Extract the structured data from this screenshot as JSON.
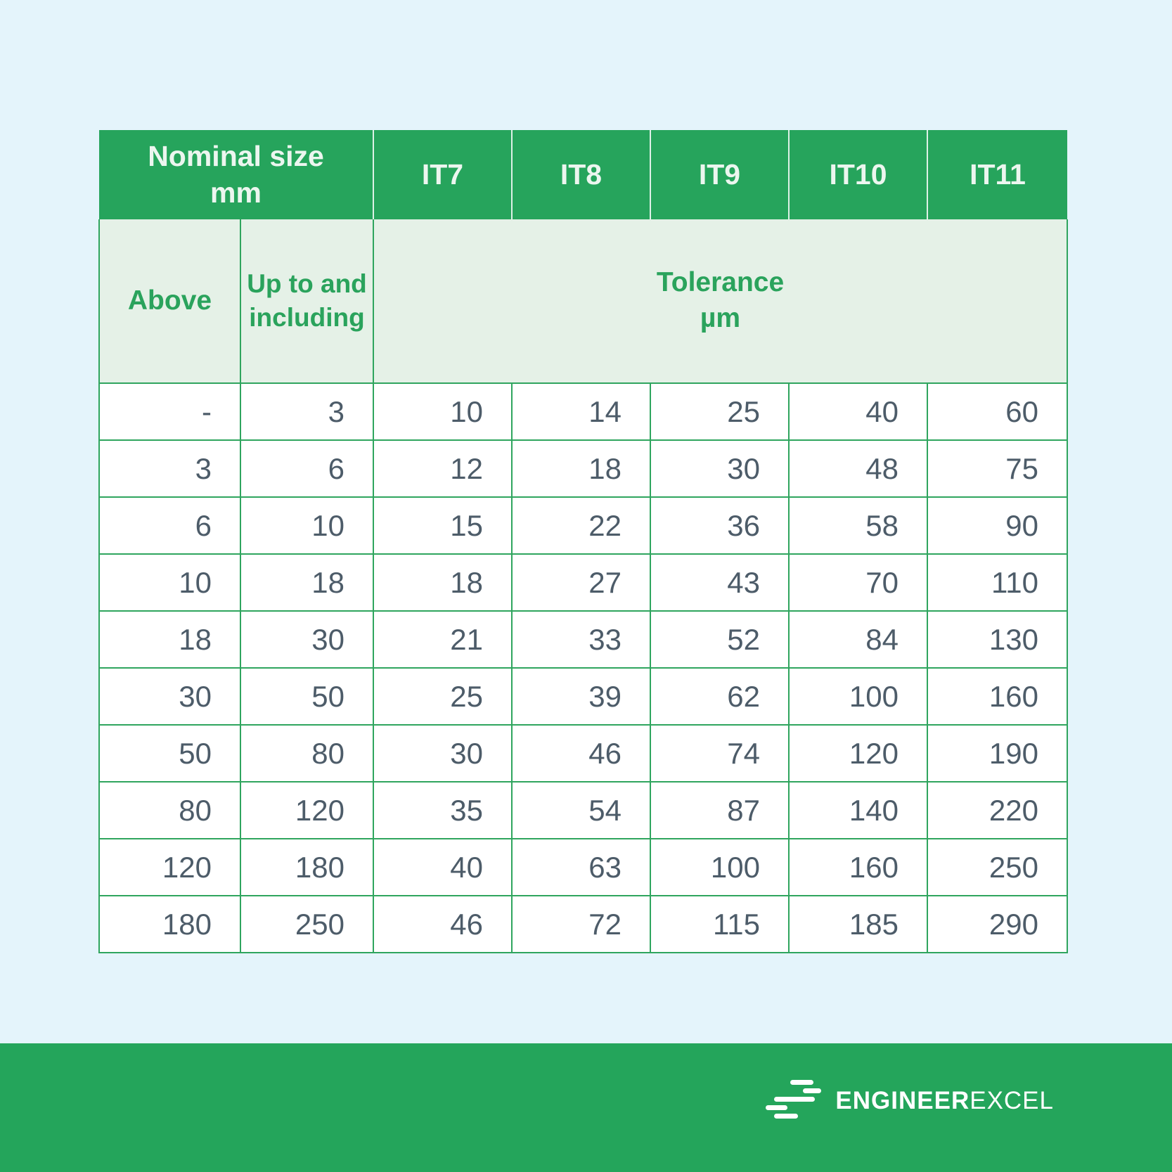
{
  "colors": {
    "page_background": "#e4f4fb",
    "header_green": "#26a45c",
    "subheader_background": "#e5f1e7",
    "subheader_text_green": "#2aa35c",
    "border_green": "#2fa55e",
    "data_text": "#4d5c69",
    "footer_green": "#24a55b",
    "header_text": "#ecf6ef"
  },
  "table": {
    "header": {
      "nominal_line1": "Nominal size",
      "nominal_line2": "mm",
      "it_columns": [
        "IT7",
        "IT8",
        "IT9",
        "IT10",
        "IT11"
      ]
    },
    "subheader": {
      "above": "Above",
      "up_to_line1": "Up to and",
      "up_to_line2": "including",
      "tolerance_line1": "Tolerance",
      "tolerance_line2": "µm"
    }
  },
  "chart_data": {
    "type": "table",
    "title": "International tolerance grades by nominal size",
    "units": "µm",
    "columns": [
      "Above",
      "Up to and including",
      "IT7",
      "IT8",
      "IT9",
      "IT10",
      "IT11"
    ],
    "rows": [
      [
        "-",
        "3",
        "10",
        "14",
        "25",
        "40",
        "60"
      ],
      [
        "3",
        "6",
        "12",
        "18",
        "30",
        "48",
        "75"
      ],
      [
        "6",
        "10",
        "15",
        "22",
        "36",
        "58",
        "90"
      ],
      [
        "10",
        "18",
        "18",
        "27",
        "43",
        "70",
        "110"
      ],
      [
        "18",
        "30",
        "21",
        "33",
        "52",
        "84",
        "130"
      ],
      [
        "30",
        "50",
        "25",
        "39",
        "62",
        "100",
        "160"
      ],
      [
        "50",
        "80",
        "30",
        "46",
        "74",
        "120",
        "190"
      ],
      [
        "80",
        "120",
        "35",
        "54",
        "87",
        "140",
        "220"
      ],
      [
        "120",
        "180",
        "40",
        "63",
        "100",
        "160",
        "250"
      ],
      [
        "180",
        "250",
        "46",
        "72",
        "115",
        "185",
        "290"
      ]
    ]
  },
  "footer": {
    "brand_bold": "ENGINEER",
    "brand_light": "EXCEL"
  }
}
